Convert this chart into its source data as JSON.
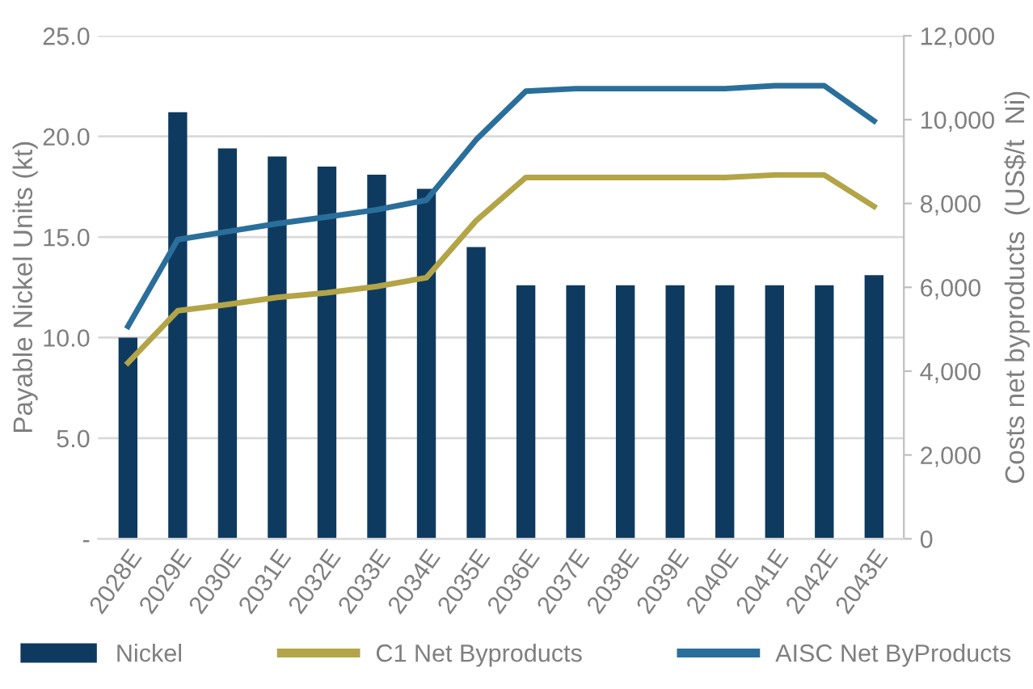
{
  "chart_data": {
    "type": "bar",
    "categories": [
      "2028E",
      "2029E",
      "2030E",
      "2031E",
      "2032E",
      "2033E",
      "2034E",
      "2035E",
      "2036E",
      "2037E",
      "2038E",
      "2039E",
      "2040E",
      "2041E",
      "2042E",
      "2043E"
    ],
    "series": [
      {
        "name": "Nickel",
        "color": "#0f3a5f",
        "values": [
          10.0,
          21.2,
          19.4,
          19.0,
          18.5,
          18.1,
          17.4,
          14.5,
          12.6,
          12.6,
          12.6,
          12.6,
          12.6,
          12.6,
          12.6,
          13.1
        ]
      },
      {
        "name": "C1 Net Byproducts",
        "type": "line",
        "axis": "y2",
        "color": "#b3a447",
        "values": [
          4200,
          5440,
          5590,
          5760,
          5870,
          6020,
          6230,
          7590,
          8620,
          8620,
          8620,
          8620,
          8620,
          8680,
          8680,
          7930
        ]
      },
      {
        "name": "AISC Net ByProducts",
        "type": "line",
        "axis": "y2",
        "color": "#2a6f9b",
        "values": [
          5070,
          7140,
          7330,
          7520,
          7680,
          7850,
          8080,
          9520,
          10680,
          10740,
          10740,
          10740,
          10740,
          10810,
          10810,
          9970
        ]
      }
    ],
    "ylabel": "Payable Nickel Units (kt)",
    "y2label": "Costs net byproducts  (US$/t  Ni)",
    "ylim": [
      0,
      25
    ],
    "yticks": [
      {
        "value": 0,
        "label": "-"
      },
      {
        "value": 5,
        "label": "5.0"
      },
      {
        "value": 10,
        "label": "10.0"
      },
      {
        "value": 15,
        "label": "15.0"
      },
      {
        "value": 20,
        "label": "20.0"
      },
      {
        "value": 25,
        "label": "25.0"
      }
    ],
    "y2lim": [
      0,
      12000
    ],
    "y2ticks": [
      {
        "value": 0,
        "label": "0"
      },
      {
        "value": 2000,
        "label": "2,000"
      },
      {
        "value": 4000,
        "label": "4,000"
      },
      {
        "value": 6000,
        "label": "6,000"
      },
      {
        "value": 8000,
        "label": "8,000"
      },
      {
        "value": 10000,
        "label": "10,000"
      },
      {
        "value": 12000,
        "label": "12,000"
      }
    ],
    "grid": "y",
    "legend": "bottom",
    "marker": "none",
    "line_style": "solid"
  }
}
